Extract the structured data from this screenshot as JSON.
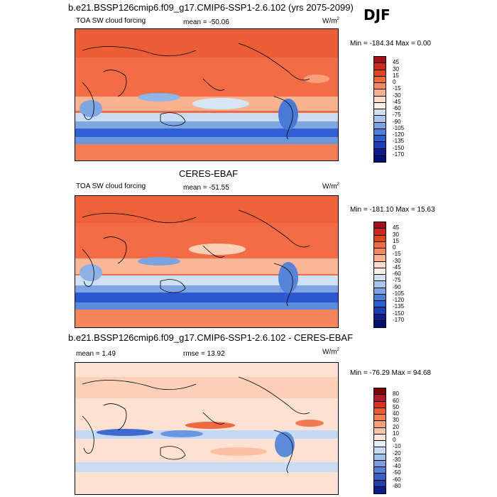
{
  "header": {
    "case_title": "b.e21.BSSP126cmip6.f09_g17.CMIP6-SSP1-2.6.102 (yrs 2075-2099)",
    "season": "DJF"
  },
  "panels": [
    {
      "id": "model",
      "title": "",
      "variable": "TOA SW cloud forcing",
      "mean_label": "mean = -50.06",
      "units": "W/m",
      "units_sup": "2",
      "minmax": "Min = -184.34 Max =   0.00",
      "rmse_label": ""
    },
    {
      "id": "obs",
      "title": "CERES-EBAF",
      "variable": "TOA SW cloud forcing",
      "mean_label": "mean = -51.55",
      "units": "W/m",
      "units_sup": "2",
      "minmax": "Min = -181.10 Max =  15.63",
      "rmse_label": ""
    },
    {
      "id": "diff",
      "title": "b.e21.BSSP126cmip6.f09_g17.CMIP6-SSP1-2.6.102 - CERES-EBAF",
      "variable": "",
      "mean_label": "mean =   1.49",
      "units": "W/m",
      "units_sup": "2",
      "minmax": "Min = -76.29 Max =  94.68",
      "rmse_label": "rmse =  13.92"
    }
  ],
  "chart_data": [
    {
      "type": "heatmap",
      "title": "TOA SW cloud forcing",
      "colorbar_levels": [
        45,
        30,
        15,
        0,
        -15,
        -30,
        -45,
        -60,
        -75,
        -90,
        -105,
        -120,
        -135,
        -150,
        -170
      ],
      "colorbar_colors": [
        "#a50f15",
        "#cb2a1d",
        "#e0461e",
        "#f16a3c",
        "#f5885e",
        "#fab090",
        "#fddbc7",
        "#fdf0e6",
        "#cfe1f2",
        "#a9c6ea",
        "#7ba4e0",
        "#4d7fd7",
        "#2a5fd0",
        "#1a3fb8",
        "#0a1e8c",
        "#001070"
      ],
      "mean": -50.06,
      "min": -184.34,
      "max": 0.0
    },
    {
      "type": "heatmap",
      "title": "CERES-EBAF",
      "colorbar_levels": [
        45,
        30,
        15,
        0,
        -15,
        -30,
        -45,
        -60,
        -75,
        -90,
        -105,
        -120,
        -135,
        -150,
        -170
      ],
      "colorbar_colors": [
        "#a50f15",
        "#cb2a1d",
        "#e0461e",
        "#f16a3c",
        "#f5885e",
        "#fab090",
        "#fddbc7",
        "#fdf0e6",
        "#cfe1f2",
        "#a9c6ea",
        "#7ba4e0",
        "#4d7fd7",
        "#2a5fd0",
        "#1a3fb8",
        "#0a1e8c",
        "#001070"
      ],
      "mean": -51.55,
      "min": -181.1,
      "max": 15.63
    },
    {
      "type": "heatmap",
      "title": "b.e21.BSSP126cmip6.f09_g17.CMIP6-SSP1-2.6.102 - CERES-EBAF",
      "colorbar_levels": [
        80,
        60,
        50,
        40,
        30,
        20,
        10,
        0,
        -10,
        -20,
        -30,
        -40,
        -50,
        -60,
        -80
      ],
      "colorbar_colors": [
        "#7f0000",
        "#b2182b",
        "#d6301e",
        "#ef5a32",
        "#f47c50",
        "#f9a07a",
        "#fcc5a8",
        "#fde4d4",
        "#e3eefa",
        "#c6dbf3",
        "#a2c1ea",
        "#7ca0df",
        "#5780d4",
        "#3a5fc8",
        "#2040b0",
        "#0a1e88"
      ],
      "mean": 1.49,
      "rmse": 13.92,
      "min": -76.29,
      "max": 94.68
    }
  ]
}
